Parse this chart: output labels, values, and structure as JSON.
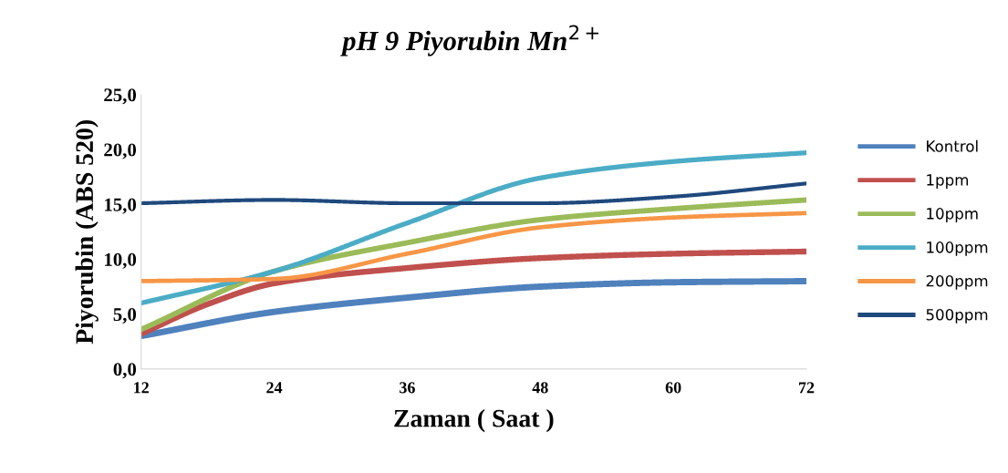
{
  "chart_data": {
    "type": "line",
    "title": "pH 9 Piyorubin Mn$^{2+}$",
    "xlabel": "Zaman ( Saat )",
    "ylabel": "Piyorubin (ABS 520)",
    "x": [
      12,
      24,
      36,
      48,
      60,
      72
    ],
    "xlim": [
      12,
      72
    ],
    "xticks": [
      12,
      24,
      36,
      48,
      60,
      72
    ],
    "ylim": [
      0,
      25
    ],
    "yticks": [
      {
        "value": 0,
        "label": "0,0"
      },
      {
        "value": 5,
        "label": "5,0"
      },
      {
        "value": 10,
        "label": "10,0"
      },
      {
        "value": 15,
        "label": "15,0"
      },
      {
        "value": 20,
        "label": "20,0"
      },
      {
        "value": 25,
        "label": "25,0"
      }
    ],
    "grid": false,
    "legend": "right",
    "marker": "none",
    "line_style": "solid",
    "series": [
      {
        "name": "Kontrol",
        "color": "#4f81bd",
        "values": [
          3.0,
          5.2,
          6.5,
          7.5,
          7.9,
          8.0
        ]
      },
      {
        "name": "1ppm",
        "color": "#c0504d",
        "x": [
          12,
          18,
          24,
          36,
          48,
          60,
          72
        ],
        "values": [
          3.2,
          5.9,
          7.8,
          9.2,
          10.1,
          10.5,
          10.7
        ]
      },
      {
        "name": "10ppm",
        "color": "#9bbb59",
        "values": [
          3.6,
          8.9,
          11.5,
          13.6,
          14.6,
          15.4
        ]
      },
      {
        "name": "100ppm",
        "color": "#4bacc6",
        "values": [
          6.0,
          8.9,
          13.3,
          17.4,
          18.9,
          19.7
        ]
      },
      {
        "name": "200ppm",
        "color": "#f79646",
        "values": [
          8.0,
          8.2,
          10.5,
          12.9,
          13.8,
          14.2
        ]
      },
      {
        "name": "500ppm",
        "color": "#1f497d",
        "values": [
          15.1,
          15.4,
          15.1,
          15.1,
          15.7,
          16.9
        ]
      }
    ]
  }
}
